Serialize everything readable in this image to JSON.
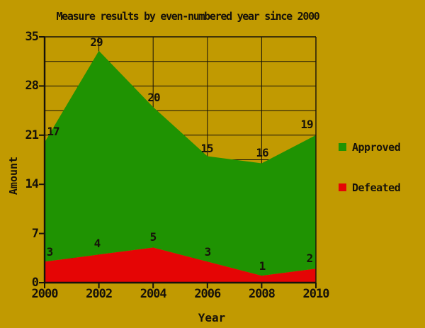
{
  "chart_data": {
    "type": "area",
    "stacked": true,
    "title": "Measure results by even-numbered year since 2000",
    "xlabel": "Year",
    "ylabel": "Amount",
    "categories": [
      2000,
      2002,
      2004,
      2006,
      2008,
      2010
    ],
    "series": [
      {
        "name": "Defeated",
        "color": "#e50505",
        "values": [
          3,
          4,
          5,
          3,
          1,
          2
        ]
      },
      {
        "name": "Approved",
        "color": "#1f9302",
        "values": [
          17,
          29,
          20,
          15,
          16,
          19
        ]
      }
    ],
    "ylim": [
      0,
      35
    ],
    "yticks": [
      0,
      7,
      14,
      21,
      28,
      35
    ],
    "minor_grid_step": 3.5,
    "grid": true,
    "legend_position": "right",
    "colors": {
      "background": "#c19a01",
      "approved": "#1f9302",
      "defeated": "#e50505",
      "ink": "#17120a"
    }
  }
}
